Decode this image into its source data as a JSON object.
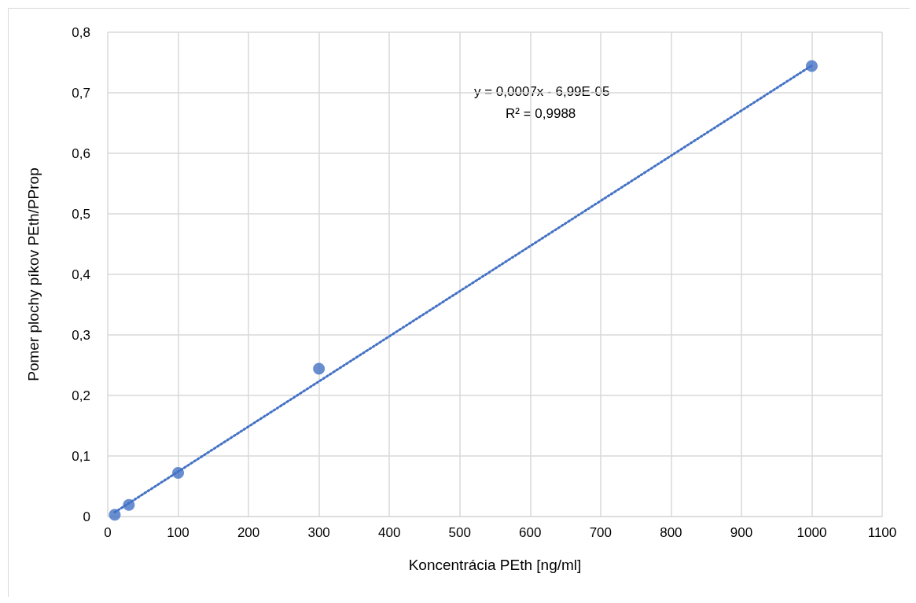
{
  "chart_data": {
    "type": "scatter",
    "xlabel": "Koncentrácia PEth [ng/ml]",
    "ylabel": "Pomer plochy píkov PEth/PProp",
    "series": [
      {
        "color": "#4472c4",
        "x": [
          10,
          30,
          100,
          300,
          1000
        ],
        "values": [
          0.003,
          0.019,
          0.072,
          0.244,
          0.744
        ],
        "marker": "circle"
      },
      {
        "type": "line",
        "color": "#4472c4",
        "x": [
          10,
          1000
        ],
        "values": [
          0.007,
          0.745
        ],
        "marker": "none",
        "line_style": "dotted"
      }
    ],
    "annotations": [
      "y = 0,0007x - 6,99E-05",
      "R² = 0,9988"
    ],
    "xlim": [
      0,
      1100
    ],
    "xticks": [
      0,
      100,
      200,
      300,
      400,
      500,
      600,
      700,
      800,
      900,
      1000,
      1100
    ],
    "ylim": [
      0,
      0.8
    ],
    "yticks": [
      0,
      {
        "value": 0.1,
        "label": "0,1"
      },
      {
        "value": 0.2,
        "label": "0,2"
      },
      {
        "value": 0.3,
        "label": "0,3"
      },
      {
        "value": 0.4,
        "label": "0,4"
      },
      {
        "value": 0.5,
        "label": "0,5"
      },
      {
        "value": 0.6,
        "label": "0,6"
      },
      {
        "value": 0.7,
        "label": "0,7"
      },
      {
        "value": 0.8,
        "label": "0,8"
      }
    ],
    "grid": true
  }
}
